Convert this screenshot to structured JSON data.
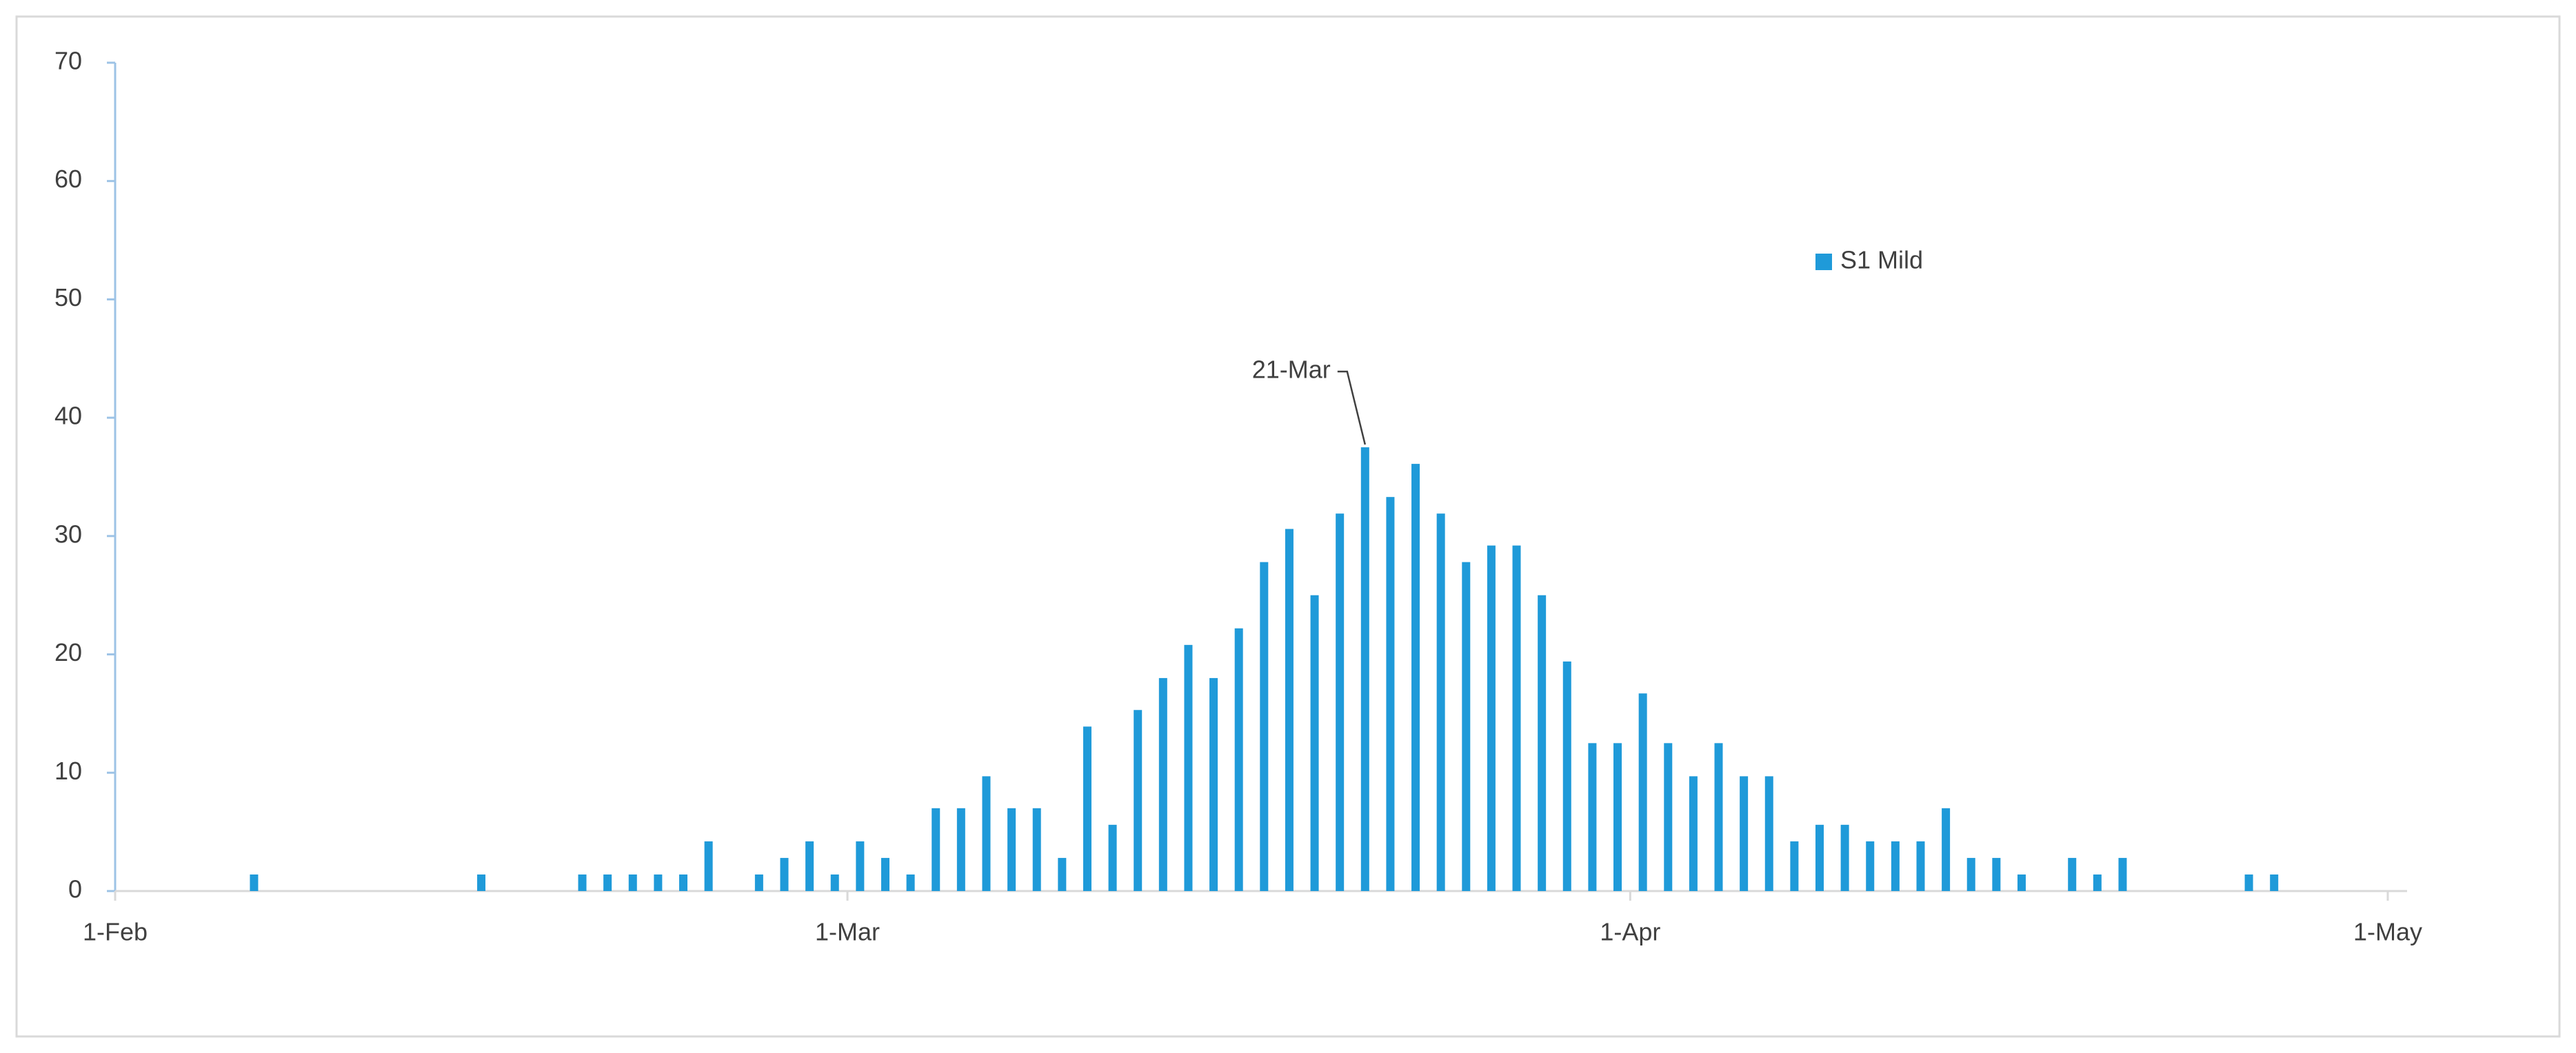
{
  "chart_data": {
    "type": "bar",
    "x": [
      "6-Feb",
      "15-Feb",
      "19-Feb",
      "20-Feb",
      "21-Feb",
      "22-Feb",
      "23-Feb",
      "24-Feb",
      "26-Feb",
      "27-Feb",
      "28-Feb",
      "29-Feb",
      "1-Mar",
      "2-Mar",
      "3-Mar",
      "4-Mar",
      "5-Mar",
      "6-Mar",
      "7-Mar",
      "8-Mar",
      "9-Mar",
      "10-Mar",
      "11-Mar",
      "12-Mar",
      "13-Mar",
      "14-Mar",
      "15-Mar",
      "16-Mar",
      "17-Mar",
      "18-Mar",
      "19-Mar",
      "20-Mar",
      "21-Mar",
      "22-Mar",
      "23-Mar",
      "24-Mar",
      "25-Mar",
      "26-Mar",
      "27-Mar",
      "28-Mar",
      "29-Mar",
      "30-Mar",
      "31-Mar",
      "1-Apr",
      "2-Apr",
      "3-Apr",
      "4-Apr",
      "5-Apr",
      "6-Apr",
      "7-Apr",
      "8-Apr",
      "9-Apr",
      "10-Apr",
      "11-Apr",
      "12-Apr",
      "13-Apr",
      "14-Apr",
      "15-Apr",
      "16-Apr",
      "18-Apr",
      "19-Apr",
      "20-Apr",
      "25-Apr",
      "26-Apr"
    ],
    "series": [
      {
        "name": "S1 Mild",
        "color": "#1f9ad9",
        "values": [
          1.4,
          1.4,
          1.4,
          1.4,
          1.4,
          1.4,
          1.4,
          4.2,
          1.4,
          2.8,
          4.2,
          1.4,
          4.2,
          2.8,
          1.4,
          7,
          7,
          9.7,
          7,
          7,
          2.8,
          13.9,
          5.6,
          15.3,
          18,
          20.8,
          18,
          22.2,
          27.8,
          30.6,
          25,
          31.9,
          37.5,
          33.3,
          36.1,
          31.9,
          27.8,
          29.2,
          29.2,
          25,
          19.4,
          12.5,
          12.5,
          16.7,
          12.5,
          9.7,
          12.5,
          9.7,
          9.7,
          4.2,
          5.6,
          5.6,
          4.2,
          4.2,
          4.2,
          7,
          2.8,
          2.8,
          1.4,
          2.8,
          1.4,
          2.8,
          1.4,
          1.4
        ]
      }
    ],
    "annotation": "21-Mar",
    "xlim": [
      "1-Feb",
      "1-May"
    ],
    "xticks": [
      "1-Feb",
      "1-Mar",
      "1-Apr",
      "1-May"
    ],
    "ylim": [
      0,
      70
    ],
    "yticks": [
      0,
      10,
      20,
      30,
      40,
      50,
      60,
      70
    ],
    "grid": false,
    "legend": "upper right"
  }
}
